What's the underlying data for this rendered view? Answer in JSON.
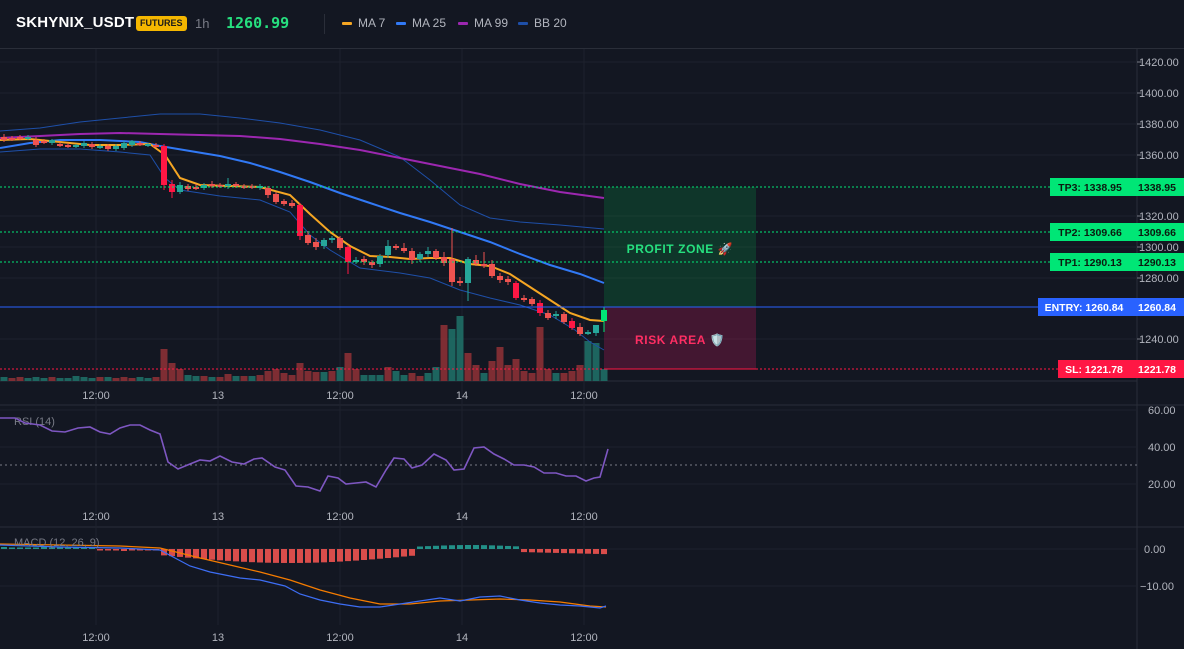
{
  "header": {
    "symbol": "SKHYNIX_USDT",
    "badge": "FUTURES",
    "timeframe": "1h",
    "last_price": "1260.99"
  },
  "legend": [
    {
      "label": "MA 7",
      "color": "#f5a623"
    },
    {
      "label": "MA 25",
      "color": "#3179f5"
    },
    {
      "label": "MA 99",
      "color": "#9c27b0"
    },
    {
      "label": "BB 20",
      "color": "#1e4fa8"
    }
  ],
  "colors": {
    "up": "#26a69a",
    "down": "#ef5350",
    "up_bright": "#00e676",
    "down_bright": "#ff1744",
    "bg": "#131722"
  },
  "price_axis": [
    "1420.00",
    "1400.00",
    "1380.00",
    "1360.00",
    "1320.00",
    "1300.00",
    "1280.00",
    "1240.00"
  ],
  "time_axis": [
    "12:00",
    "13",
    "12:00",
    "14",
    "12:00"
  ],
  "levels": [
    {
      "label": "TP3: 1338.95",
      "value": "1338.95",
      "color": "#00e676",
      "kind": "tp"
    },
    {
      "label": "TP2: 1309.66",
      "value": "1309.66",
      "color": "#00e676",
      "kind": "tp"
    },
    {
      "label": "TP1: 1290.13",
      "value": "1290.13",
      "color": "#00e676",
      "kind": "tp"
    },
    {
      "label": "ENTRY: 1260.84",
      "value": "1260.84",
      "color": "#2962ff",
      "kind": "entry"
    },
    {
      "label": "SL: 1221.78",
      "value": "1221.78",
      "color": "#ff1744",
      "kind": "sl"
    }
  ],
  "zones": {
    "profit": "PROFIT ZONE 🚀",
    "risk": "RISK AREA 🛡️"
  },
  "rsi": {
    "title": "RSI (14)",
    "axis": [
      "60.00",
      "40.00",
      "20.00"
    ]
  },
  "macd": {
    "title": "MACD (12, 26, 9)",
    "axis": [
      "0.00",
      "−10.00"
    ]
  }
}
